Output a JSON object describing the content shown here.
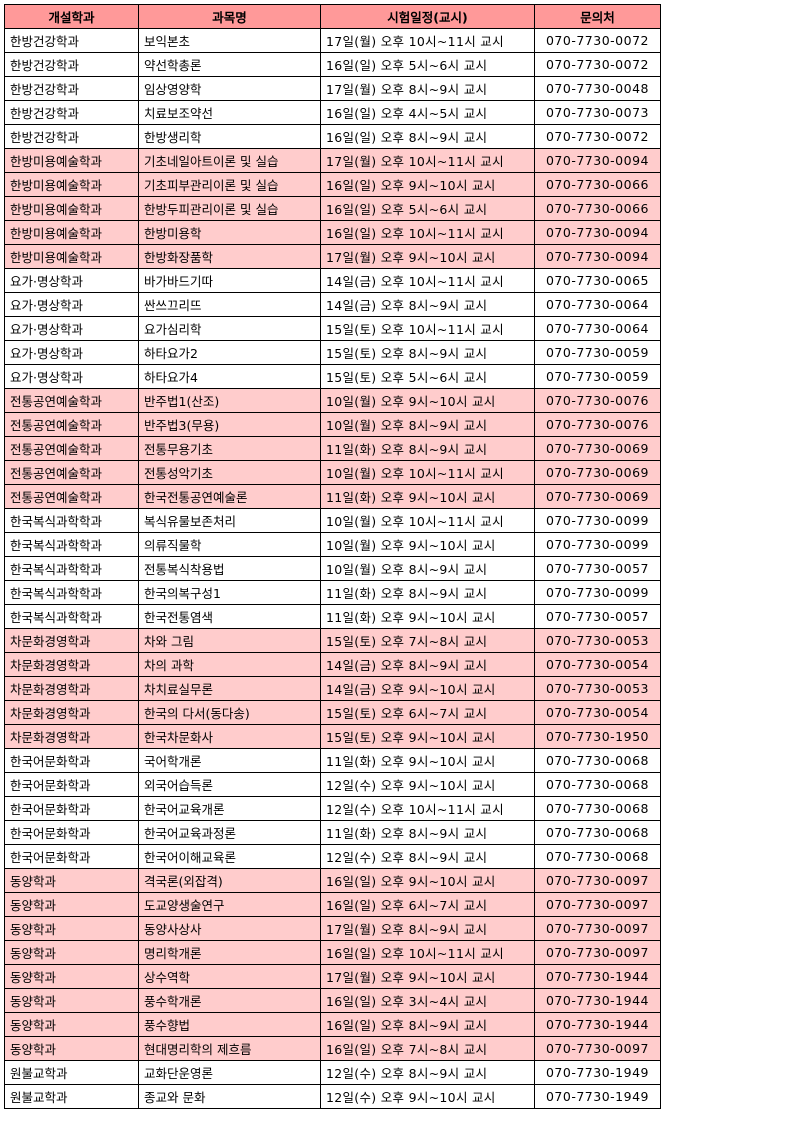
{
  "colors": {
    "header_bg": "#ff9999",
    "highlight_bg": "#ffcccc"
  },
  "headers": [
    "개설학과",
    "과목명",
    "시험일정(교시)",
    "문의처"
  ],
  "rows": [
    {
      "dept": "한방건강학과",
      "course": "보익본초",
      "schedule": "17일(월) 오후 10시~11시 교시",
      "contact": "070-7730-0072",
      "highlight": false
    },
    {
      "dept": "한방건강학과",
      "course": "약선학총론",
      "schedule": "16일(일) 오후 5시~6시 교시",
      "contact": "070-7730-0072",
      "highlight": false
    },
    {
      "dept": "한방건강학과",
      "course": "임상영양학",
      "schedule": "17일(월) 오후 8시~9시 교시",
      "contact": "070-7730-0048",
      "highlight": false
    },
    {
      "dept": "한방건강학과",
      "course": "치료보조약선",
      "schedule": "16일(일) 오후 4시~5시 교시",
      "contact": "070-7730-0073",
      "highlight": false
    },
    {
      "dept": "한방건강학과",
      "course": "한방생리학",
      "schedule": "16일(일) 오후 8시~9시 교시",
      "contact": "070-7730-0072",
      "highlight": false
    },
    {
      "dept": "한방미용예술학과",
      "course": "기초네일아트이론 및 실습",
      "schedule": "17일(월) 오후 10시~11시 교시",
      "contact": "070-7730-0094",
      "highlight": true
    },
    {
      "dept": "한방미용예술학과",
      "course": "기초피부관리이론 및 실습",
      "schedule": "16일(일) 오후 9시~10시 교시",
      "contact": "070-7730-0066",
      "highlight": true
    },
    {
      "dept": "한방미용예술학과",
      "course": "한방두피관리이론 및 실습",
      "schedule": "16일(일) 오후 5시~6시 교시",
      "contact": "070-7730-0066",
      "highlight": true
    },
    {
      "dept": "한방미용예술학과",
      "course": "한방미용학",
      "schedule": "16일(일) 오후 10시~11시 교시",
      "contact": "070-7730-0094",
      "highlight": true
    },
    {
      "dept": "한방미용예술학과",
      "course": "한방화장품학",
      "schedule": "17일(월) 오후 9시~10시 교시",
      "contact": "070-7730-0094",
      "highlight": true
    },
    {
      "dept": "요가·명상학과",
      "course": "바가바드기따",
      "schedule": "14일(금) 오후 10시~11시 교시",
      "contact": "070-7730-0065",
      "highlight": false
    },
    {
      "dept": "요가·명상학과",
      "course": "싼쓰끄리뜨",
      "schedule": "14일(금) 오후 8시~9시 교시",
      "contact": "070-7730-0064",
      "highlight": false
    },
    {
      "dept": "요가·명상학과",
      "course": "요가심리학",
      "schedule": "15일(토) 오후 10시~11시 교시",
      "contact": "070-7730-0064",
      "highlight": false
    },
    {
      "dept": "요가·명상학과",
      "course": "하타요가2",
      "schedule": "15일(토) 오후 8시~9시 교시",
      "contact": "070-7730-0059",
      "highlight": false
    },
    {
      "dept": "요가·명상학과",
      "course": "하타요가4",
      "schedule": "15일(토) 오후 5시~6시 교시",
      "contact": "070-7730-0059",
      "highlight": false
    },
    {
      "dept": "전통공연예술학과",
      "course": "반주법1(산조)",
      "schedule": "10일(월) 오후 9시~10시 교시",
      "contact": "070-7730-0076",
      "highlight": true
    },
    {
      "dept": "전통공연예술학과",
      "course": "반주법3(무용)",
      "schedule": "10일(월) 오후 8시~9시 교시",
      "contact": "070-7730-0076",
      "highlight": true
    },
    {
      "dept": "전통공연예술학과",
      "course": "전통무용기초",
      "schedule": "11일(화) 오후 8시~9시 교시",
      "contact": "070-7730-0069",
      "highlight": true
    },
    {
      "dept": "전통공연예술학과",
      "course": "전통성악기초",
      "schedule": "10일(월) 오후 10시~11시 교시",
      "contact": "070-7730-0069",
      "highlight": true
    },
    {
      "dept": "전통공연예술학과",
      "course": "한국전통공연예술론",
      "schedule": "11일(화) 오후 9시~10시 교시",
      "contact": "070-7730-0069",
      "highlight": true
    },
    {
      "dept": "한국복식과학학과",
      "course": "복식유물보존처리",
      "schedule": "10일(월) 오후 10시~11시 교시",
      "contact": "070-7730-0099",
      "highlight": false
    },
    {
      "dept": "한국복식과학학과",
      "course": "의류직물학",
      "schedule": "10일(월) 오후 9시~10시 교시",
      "contact": "070-7730-0099",
      "highlight": false
    },
    {
      "dept": "한국복식과학학과",
      "course": "전통복식착용법",
      "schedule": "10일(월) 오후 8시~9시 교시",
      "contact": "070-7730-0057",
      "highlight": false
    },
    {
      "dept": "한국복식과학학과",
      "course": "한국의복구성1",
      "schedule": "11일(화) 오후 8시~9시 교시",
      "contact": "070-7730-0099",
      "highlight": false
    },
    {
      "dept": "한국복식과학학과",
      "course": "한국전통염색",
      "schedule": "11일(화) 오후 9시~10시 교시",
      "contact": "070-7730-0057",
      "highlight": false
    },
    {
      "dept": "차문화경영학과",
      "course": "차와 그림",
      "schedule": "15일(토) 오후 7시~8시 교시",
      "contact": "070-7730-0053",
      "highlight": true
    },
    {
      "dept": "차문화경영학과",
      "course": "차의 과학",
      "schedule": "14일(금) 오후 8시~9시 교시",
      "contact": "070-7730-0054",
      "highlight": true
    },
    {
      "dept": "차문화경영학과",
      "course": "차치료실무론",
      "schedule": "14일(금) 오후 9시~10시 교시",
      "contact": "070-7730-0053",
      "highlight": true
    },
    {
      "dept": "차문화경영학과",
      "course": "한국의 다서(동다송)",
      "schedule": "15일(토) 오후 6시~7시 교시",
      "contact": "070-7730-0054",
      "highlight": true
    },
    {
      "dept": "차문화경영학과",
      "course": "한국차문화사",
      "schedule": "15일(토) 오후 9시~10시 교시",
      "contact": "070-7730-1950",
      "highlight": true
    },
    {
      "dept": "한국어문화학과",
      "course": "국어학개론",
      "schedule": "11일(화) 오후 9시~10시 교시",
      "contact": "070-7730-0068",
      "highlight": false
    },
    {
      "dept": "한국어문화학과",
      "course": "외국어습득론",
      "schedule": "12일(수) 오후 9시~10시 교시",
      "contact": "070-7730-0068",
      "highlight": false
    },
    {
      "dept": "한국어문화학과",
      "course": "한국어교육개론",
      "schedule": "12일(수) 오후 10시~11시 교시",
      "contact": "070-7730-0068",
      "highlight": false
    },
    {
      "dept": "한국어문화학과",
      "course": "한국어교육과정론",
      "schedule": "11일(화) 오후 8시~9시 교시",
      "contact": "070-7730-0068",
      "highlight": false
    },
    {
      "dept": "한국어문화학과",
      "course": "한국어이해교육론",
      "schedule": "12일(수) 오후 8시~9시 교시",
      "contact": "070-7730-0068",
      "highlight": false
    },
    {
      "dept": "동양학과",
      "course": "격국론(외잡격)",
      "schedule": "16일(일) 오후 9시~10시 교시",
      "contact": "070-7730-0097",
      "highlight": true
    },
    {
      "dept": "동양학과",
      "course": "도교양생술연구",
      "schedule": "16일(일) 오후 6시~7시 교시",
      "contact": "070-7730-0097",
      "highlight": true
    },
    {
      "dept": "동양학과",
      "course": "동양사상사",
      "schedule": "17일(월) 오후 8시~9시 교시",
      "contact": "070-7730-0097",
      "highlight": true
    },
    {
      "dept": "동양학과",
      "course": "명리학개론",
      "schedule": "16일(일) 오후 10시~11시 교시",
      "contact": "070-7730-0097",
      "highlight": true
    },
    {
      "dept": "동양학과",
      "course": "상수역학",
      "schedule": "17일(월) 오후 9시~10시 교시",
      "contact": "070-7730-1944",
      "highlight": true
    },
    {
      "dept": "동양학과",
      "course": "풍수학개론",
      "schedule": "16일(일) 오후 3시~4시 교시",
      "contact": "070-7730-1944",
      "highlight": true
    },
    {
      "dept": "동양학과",
      "course": "풍수향법",
      "schedule": "16일(일) 오후 8시~9시 교시",
      "contact": "070-7730-1944",
      "highlight": true
    },
    {
      "dept": "동양학과",
      "course": "현대명리학의 제흐름",
      "schedule": "16일(일) 오후 7시~8시 교시",
      "contact": "070-7730-0097",
      "highlight": true
    },
    {
      "dept": "원불교학과",
      "course": "교화단운영론",
      "schedule": "12일(수) 오후 8시~9시 교시",
      "contact": "070-7730-1949",
      "highlight": false
    },
    {
      "dept": "원불교학과",
      "course": "종교와 문화",
      "schedule": "12일(수) 오후 9시~10시 교시",
      "contact": "070-7730-1949",
      "highlight": false
    }
  ]
}
